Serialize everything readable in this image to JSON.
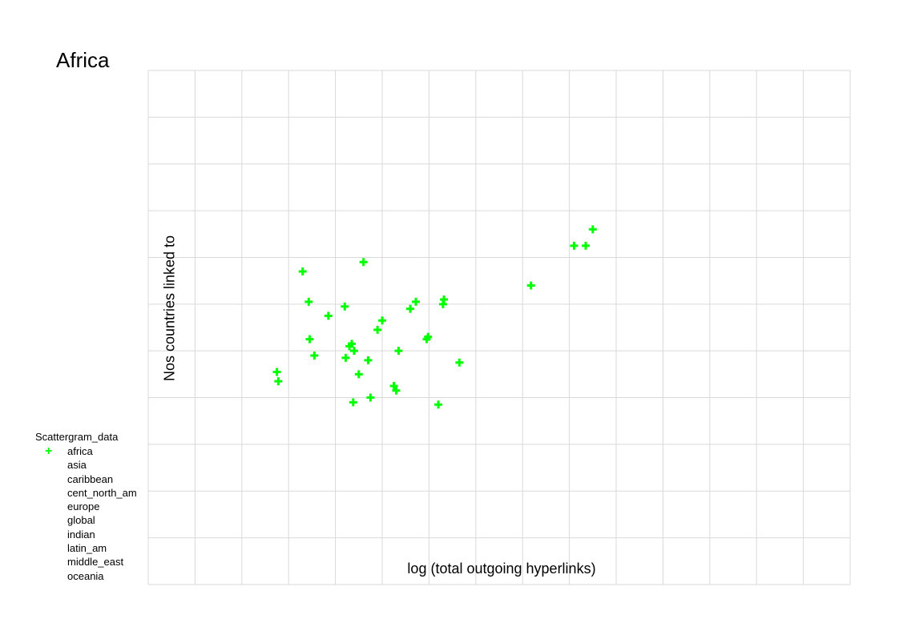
{
  "chart_data": {
    "type": "scatter",
    "title": "Africa",
    "xlabel": "log (total outgoing hyperlinks)",
    "ylabel": "Nos countries linked to",
    "xlim": [
      0,
      15
    ],
    "ylim": [
      0,
      11
    ],
    "grid": true,
    "legend": {
      "title": "Scattergram_data",
      "placement": "bottom-left",
      "entries": [
        "africa",
        "asia",
        "caribbean",
        "cent_north_am",
        "europe",
        "global",
        "indian",
        "latin_am",
        "middle_east",
        "oceania"
      ]
    },
    "series": [
      {
        "name": "africa",
        "color": "#00ff00",
        "marker": "plus",
        "points": [
          [
            2.75,
            4.55
          ],
          [
            2.78,
            4.35
          ],
          [
            3.3,
            6.7
          ],
          [
            3.43,
            6.05
          ],
          [
            3.45,
            5.25
          ],
          [
            3.55,
            4.9
          ],
          [
            3.85,
            5.75
          ],
          [
            4.2,
            5.95
          ],
          [
            4.22,
            4.85
          ],
          [
            4.3,
            5.1
          ],
          [
            4.35,
            5.15
          ],
          [
            4.38,
            3.9
          ],
          [
            4.4,
            5.0
          ],
          [
            4.5,
            4.5
          ],
          [
            4.6,
            6.9
          ],
          [
            4.7,
            4.8
          ],
          [
            4.75,
            4.0
          ],
          [
            4.9,
            5.45
          ],
          [
            5.0,
            5.65
          ],
          [
            5.25,
            4.25
          ],
          [
            5.3,
            4.15
          ],
          [
            5.35,
            5.0
          ],
          [
            5.6,
            5.9
          ],
          [
            5.72,
            6.05
          ],
          [
            5.95,
            5.25
          ],
          [
            5.98,
            5.3
          ],
          [
            6.2,
            3.85
          ],
          [
            6.3,
            6.0
          ],
          [
            6.32,
            6.1
          ],
          [
            6.65,
            4.75
          ],
          [
            8.18,
            6.4
          ],
          [
            9.1,
            7.25
          ],
          [
            9.35,
            7.25
          ],
          [
            9.5,
            7.6
          ]
        ]
      }
    ]
  }
}
